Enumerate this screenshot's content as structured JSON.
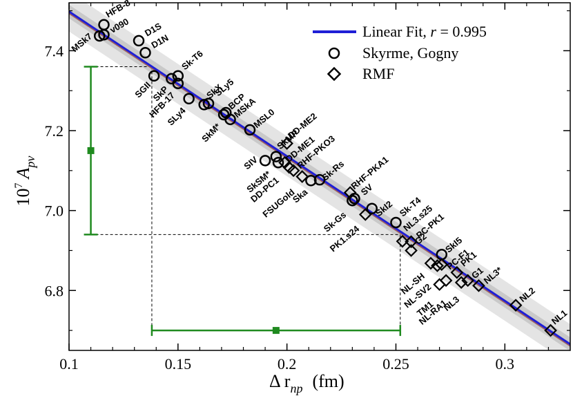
{
  "chart_data": {
    "type": "scatter",
    "xlabel": "Δ r",
    "xlabel_sub": "np",
    "xlabel_unit": "(fm)",
    "ylabel": "10",
    "ylabel_sup": "7",
    "ylabel_main": "A",
    "ylabel_sub": "pv",
    "xlim": [
      0.1,
      0.33
    ],
    "ylim": [
      6.65,
      7.52
    ],
    "xticks": [
      0.1,
      0.15,
      0.2,
      0.25,
      0.3
    ],
    "xtick_labels": [
      "0.1",
      "0.15",
      "0.2",
      "0.25",
      "0.3"
    ],
    "yticks": [
      6.8,
      7.0,
      7.2,
      7.4
    ],
    "ytick_labels": [
      "6.8",
      "7.0",
      "7.2",
      "7.4"
    ],
    "fit": {
      "slope": -3.62,
      "intercept": 7.86,
      "band_inner": 0.017,
      "band_outer": 0.05,
      "color": "#1f1fd6",
      "edge_color": "#a06060"
    },
    "legend": {
      "fit_label": "Linear Fit, ",
      "fit_r_label": "r",
      "fit_r_value": " = 0.995",
      "circle_label": "Skyrme, Gogny",
      "diamond_label": "RMF"
    },
    "error_bars": {
      "color": "#1f8a1f",
      "vertical": {
        "x": 0.11,
        "y": 7.15,
        "ylo": 6.94,
        "yhi": 7.36
      },
      "horizontal": {
        "y": 6.7,
        "x": 0.195,
        "xlo": 0.138,
        "xhi": 0.252
      },
      "guide_lines": [
        {
          "x1": 0.11,
          "y1": 7.36,
          "x2": 0.138,
          "y2": 7.36
        },
        {
          "x1": 0.138,
          "y1": 7.36,
          "x2": 0.138,
          "y2": 6.7
        },
        {
          "x1": 0.11,
          "y1": 6.94,
          "x2": 0.252,
          "y2": 6.94
        },
        {
          "x1": 0.252,
          "y1": 6.94,
          "x2": 0.252,
          "y2": 6.7
        }
      ]
    },
    "skyrme_gogny": [
      {
        "name": "HFB-8",
        "x": 0.116,
        "y": 7.465
      },
      {
        "name": "v090",
        "x": 0.116,
        "y": 7.44
      },
      {
        "name": "MSk7",
        "x": 0.114,
        "y": 7.437
      },
      {
        "name": "D1S",
        "x": 0.132,
        "y": 7.425
      },
      {
        "name": "D1N",
        "x": 0.135,
        "y": 7.395
      },
      {
        "name": "SGII",
        "x": 0.139,
        "y": 7.337
      },
      {
        "name": "SkP",
        "x": 0.147,
        "y": 7.33
      },
      {
        "name": "Sk-T6",
        "x": 0.15,
        "y": 7.337
      },
      {
        "name": "HFB-17",
        "x": 0.15,
        "y": 7.318
      },
      {
        "name": "SLy4",
        "x": 0.155,
        "y": 7.28
      },
      {
        "name": "SkX",
        "x": 0.162,
        "y": 7.265
      },
      {
        "name": "SLy5",
        "x": 0.164,
        "y": 7.268
      },
      {
        "name": "SkM*",
        "x": 0.171,
        "y": 7.24
      },
      {
        "name": "BCP",
        "x": 0.172,
        "y": 7.245
      },
      {
        "name": "MSkA",
        "x": 0.174,
        "y": 7.228
      },
      {
        "name": "MSL0",
        "x": 0.183,
        "y": 7.202
      },
      {
        "name": "SIV",
        "x": 0.19,
        "y": 7.125
      },
      {
        "name": "SkMP",
        "x": 0.195,
        "y": 7.135
      },
      {
        "name": "SkSM*",
        "x": 0.196,
        "y": 7.12
      },
      {
        "name": "Ska",
        "x": 0.211,
        "y": 7.075
      },
      {
        "name": "Sk-Rs",
        "x": 0.215,
        "y": 7.077
      },
      {
        "name": "Sk-Gs",
        "x": 0.23,
        "y": 7.025
      },
      {
        "name": "SV",
        "x": 0.231,
        "y": 7.03
      },
      {
        "name": "SkI2",
        "x": 0.239,
        "y": 7.005
      },
      {
        "name": "Sk-T4",
        "x": 0.25,
        "y": 6.97
      },
      {
        "name": "SkI5",
        "x": 0.271,
        "y": 6.89
      }
    ],
    "rmf": [
      {
        "name": "DD-ME2",
        "x": 0.2,
        "y": 7.168
      },
      {
        "name": "DD-ME1",
        "x": 0.199,
        "y": 7.12
      },
      {
        "name": "DD-PC1",
        "x": 0.201,
        "y": 7.108
      },
      {
        "name": "RHF-PKO3",
        "x": 0.203,
        "y": 7.1
      },
      {
        "name": "FSUGold",
        "x": 0.207,
        "y": 7.085
      },
      {
        "name": "RHF-PKA1",
        "x": 0.229,
        "y": 7.045
      },
      {
        "name": "PK1.s24",
        "x": 0.236,
        "y": 6.99
      },
      {
        "name": "NL3.s25",
        "x": 0.253,
        "y": 6.923
      },
      {
        "name": "PC-PK1",
        "x": 0.257,
        "y": 6.922
      },
      {
        "name": "G2",
        "x": 0.257,
        "y": 6.9
      },
      {
        "name": "NL-SH",
        "x": 0.266,
        "y": 6.868
      },
      {
        "name": "NL-SV2",
        "x": 0.269,
        "y": 6.862
      },
      {
        "name": "PC-F1",
        "x": 0.271,
        "y": 6.865
      },
      {
        "name": "TM1",
        "x": 0.27,
        "y": 6.815
      },
      {
        "name": "NL-RA1",
        "x": 0.273,
        "y": 6.825
      },
      {
        "name": "PK1",
        "x": 0.278,
        "y": 6.845
      },
      {
        "name": "NL3",
        "x": 0.28,
        "y": 6.82
      },
      {
        "name": "G1",
        "x": 0.283,
        "y": 6.825
      },
      {
        "name": "NL3*",
        "x": 0.288,
        "y": 6.812
      },
      {
        "name": "NL2",
        "x": 0.305,
        "y": 6.763
      },
      {
        "name": "NL1",
        "x": 0.321,
        "y": 6.7
      }
    ]
  }
}
